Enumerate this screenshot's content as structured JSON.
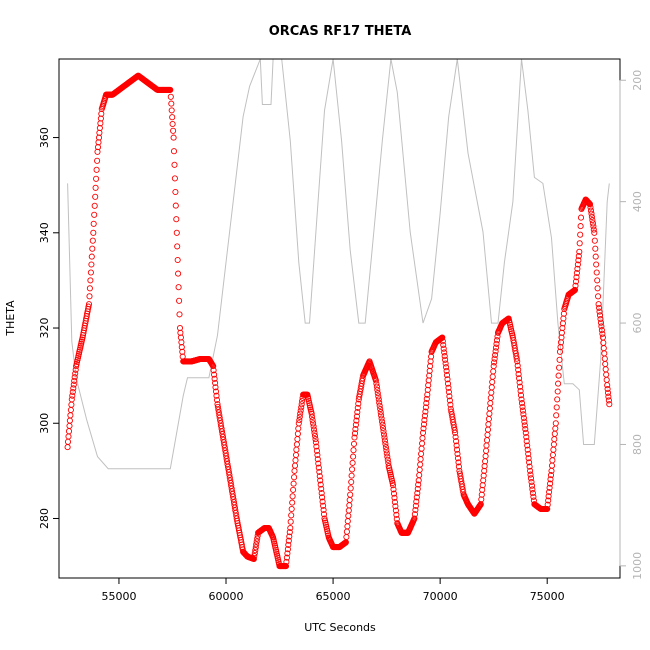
{
  "colors": {
    "points": "#ff0000",
    "pressure_line": "#c0c0c0",
    "axis": "#000000",
    "right_axis": "#b4b4b4"
  },
  "chart_data": {
    "type": "scatter",
    "title": "ORCAS RF17 THETA",
    "xlabel": "UTC Seconds",
    "ylabel": "THETA",
    "xlim": [
      52200,
      78400
    ],
    "ylim": [
      267.5,
      376.5
    ],
    "x_ticks": [
      "55000",
      "60000",
      "65000",
      "70000",
      "75000"
    ],
    "y_ticks": [
      "280",
      "300",
      "320",
      "340",
      "360"
    ],
    "right_axis": {
      "ticks": [
        "200",
        "400",
        "600",
        "800",
        "1000"
      ],
      "range": [
        1020,
        165
      ],
      "reversed": true
    },
    "grid": false,
    "marker": "open-circle",
    "series": [
      {
        "values_xy": [
          [
            52600,
            295
          ],
          [
            52800,
            305
          ],
          [
            53000,
            312
          ],
          [
            53300,
            318
          ],
          [
            53600,
            325
          ],
          [
            53800,
            340
          ],
          [
            54000,
            357
          ],
          [
            54200,
            366
          ],
          [
            54400,
            369
          ],
          [
            54700,
            369
          ],
          [
            55000,
            370
          ],
          [
            55300,
            371
          ],
          [
            55600,
            372
          ],
          [
            55900,
            373
          ],
          [
            56200,
            372
          ],
          [
            56500,
            371
          ],
          [
            56800,
            370
          ],
          [
            57100,
            370
          ],
          [
            57400,
            370
          ],
          [
            57550,
            360
          ],
          [
            57700,
            340
          ],
          [
            57850,
            320
          ],
          [
            58000,
            313
          ],
          [
            58400,
            313
          ],
          [
            58800,
            313.5
          ],
          [
            59200,
            313.5
          ],
          [
            59400,
            312
          ],
          [
            59600,
            304
          ],
          [
            59900,
            296
          ],
          [
            60200,
            288
          ],
          [
            60500,
            280
          ],
          [
            60800,
            273
          ],
          [
            61000,
            272
          ],
          [
            61300,
            271.5
          ],
          [
            61500,
            277
          ],
          [
            61800,
            278
          ],
          [
            62000,
            278
          ],
          [
            62200,
            276
          ],
          [
            62500,
            270
          ],
          [
            62800,
            270
          ],
          [
            63000,
            278
          ],
          [
            63200,
            290
          ],
          [
            63400,
            300
          ],
          [
            63600,
            306
          ],
          [
            63800,
            306
          ],
          [
            64000,
            302
          ],
          [
            64200,
            296
          ],
          [
            64400,
            288
          ],
          [
            64600,
            280
          ],
          [
            64800,
            276
          ],
          [
            65000,
            274
          ],
          [
            65300,
            274
          ],
          [
            65600,
            275
          ],
          [
            65800,
            285
          ],
          [
            66000,
            297
          ],
          [
            66200,
            305
          ],
          [
            66400,
            310
          ],
          [
            66700,
            313
          ],
          [
            67000,
            309
          ],
          [
            67200,
            303
          ],
          [
            67400,
            297
          ],
          [
            67600,
            291
          ],
          [
            67800,
            287
          ],
          [
            68000,
            279
          ],
          [
            68200,
            277
          ],
          [
            68500,
            277
          ],
          [
            68800,
            280
          ],
          [
            69000,
            288
          ],
          [
            69200,
            298
          ],
          [
            69400,
            306
          ],
          [
            69600,
            315
          ],
          [
            69800,
            317
          ],
          [
            70100,
            318
          ],
          [
            70300,
            311
          ],
          [
            70500,
            303
          ],
          [
            70700,
            298
          ],
          [
            70900,
            290
          ],
          [
            71100,
            285
          ],
          [
            71300,
            283
          ],
          [
            71600,
            281
          ],
          [
            71900,
            283
          ],
          [
            72100,
            292
          ],
          [
            72300,
            302
          ],
          [
            72500,
            312
          ],
          [
            72700,
            319
          ],
          [
            72900,
            321
          ],
          [
            73200,
            322
          ],
          [
            73400,
            318
          ],
          [
            73600,
            313
          ],
          [
            73800,
            305
          ],
          [
            74000,
            298
          ],
          [
            74200,
            290
          ],
          [
            74400,
            283
          ],
          [
            74700,
            282
          ],
          [
            75000,
            282
          ],
          [
            75200,
            290
          ],
          [
            75400,
            300
          ],
          [
            75600,
            315
          ],
          [
            75800,
            324
          ],
          [
            76000,
            327
          ],
          [
            76300,
            328
          ],
          [
            76500,
            336
          ],
          [
            76600,
            345
          ],
          [
            76800,
            347
          ],
          [
            77000,
            346
          ],
          [
            77200,
            340
          ],
          [
            77400,
            325
          ],
          [
            77600,
            318
          ],
          [
            77800,
            308
          ],
          [
            77900,
            304
          ]
        ]
      },
      {
        "values_xy": [
          [
            52600,
            370
          ],
          [
            52800,
            630
          ],
          [
            53000,
            690
          ],
          [
            53500,
            760
          ],
          [
            54000,
            820
          ],
          [
            54500,
            840
          ],
          [
            56000,
            840
          ],
          [
            57400,
            840
          ],
          [
            57600,
            800
          ],
          [
            58000,
            720
          ],
          [
            58200,
            690
          ],
          [
            59200,
            690
          ],
          [
            59600,
            620
          ],
          [
            60000,
            500
          ],
          [
            60400,
            380
          ],
          [
            60800,
            260
          ],
          [
            61100,
            210
          ],
          [
            61600,
            160
          ],
          [
            61700,
            240
          ],
          [
            62100,
            240
          ],
          [
            62200,
            160
          ],
          [
            62600,
            140
          ],
          [
            63000,
            300
          ],
          [
            63400,
            500
          ],
          [
            63700,
            600
          ],
          [
            63900,
            600
          ],
          [
            64200,
            450
          ],
          [
            64600,
            250
          ],
          [
            65000,
            160
          ],
          [
            65400,
            300
          ],
          [
            65800,
            480
          ],
          [
            66200,
            600
          ],
          [
            66500,
            600
          ],
          [
            66900,
            450
          ],
          [
            67300,
            300
          ],
          [
            67700,
            140
          ],
          [
            68000,
            220
          ],
          [
            68600,
            450
          ],
          [
            69200,
            600
          ],
          [
            69600,
            560
          ],
          [
            70000,
            420
          ],
          [
            70400,
            260
          ],
          [
            70800,
            140
          ],
          [
            71300,
            320
          ],
          [
            72000,
            450
          ],
          [
            72400,
            600
          ],
          [
            72700,
            600
          ],
          [
            73000,
            500
          ],
          [
            73400,
            400
          ],
          [
            73800,
            160
          ],
          [
            74100,
            250
          ],
          [
            74400,
            360
          ],
          [
            74800,
            370
          ],
          [
            75200,
            460
          ],
          [
            75500,
            600
          ],
          [
            75800,
            700
          ],
          [
            76200,
            700
          ],
          [
            76500,
            710
          ],
          [
            76700,
            800
          ],
          [
            77200,
            800
          ],
          [
            77500,
            660
          ],
          [
            77800,
            400
          ],
          [
            77900,
            370
          ]
        ]
      }
    ]
  }
}
